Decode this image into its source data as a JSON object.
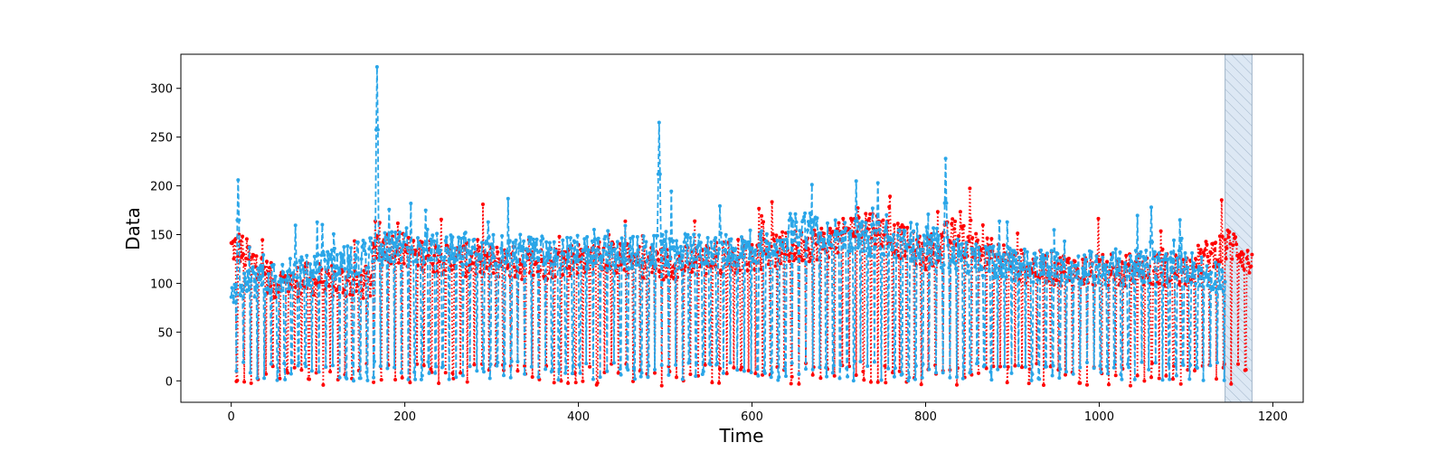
{
  "chart_data": {
    "type": "line",
    "title": "",
    "xlabel": "Time",
    "ylabel": "Data",
    "xlim": [
      -58,
      1235
    ],
    "ylim": [
      -22,
      335
    ],
    "xticks": [
      0,
      200,
      400,
      600,
      800,
      1000,
      1200
    ],
    "yticks": [
      0,
      50,
      100,
      150,
      200,
      250,
      300
    ],
    "grid": false,
    "legend": "none",
    "highlight_region": {
      "x_start": 1145,
      "x_end": 1176,
      "fill": "#dde8f4",
      "hatch": "diagonal",
      "edge": "#9fb3c8"
    },
    "series": [
      {
        "role": "observed",
        "color": "#ff0000",
        "style": "dotted",
        "marker": "dot",
        "x_start": 0,
        "x_end": 1176,
        "sampled_points": [
          [
            0,
            136
          ],
          [
            8,
            138
          ],
          [
            50,
            100
          ],
          [
            100,
            105
          ],
          [
            160,
            100
          ],
          [
            170,
            140
          ],
          [
            250,
            125
          ],
          [
            350,
            120
          ],
          [
            420,
            128
          ],
          [
            500,
            120
          ],
          [
            600,
            130
          ],
          [
            700,
            145
          ],
          [
            725,
            165
          ],
          [
            800,
            130
          ],
          [
            830,
            150
          ],
          [
            900,
            118
          ],
          [
            1000,
            112
          ],
          [
            1100,
            115
          ],
          [
            1150,
            140
          ],
          [
            1160,
            138
          ],
          [
            1176,
            115
          ]
        ],
        "low_values": [
          -5,
          18
        ]
      },
      {
        "role": "predicted",
        "color": "#2aa6e8",
        "style": "dashed",
        "marker": "dot",
        "x_start": 0,
        "x_end": 1145,
        "sampled_points": [
          [
            0,
            95
          ],
          [
            8,
            206
          ],
          [
            100,
            115
          ],
          [
            168,
            322
          ],
          [
            200,
            140
          ],
          [
            300,
            135
          ],
          [
            400,
            130
          ],
          [
            493,
            265
          ],
          [
            600,
            135
          ],
          [
            660,
            160
          ],
          [
            700,
            150
          ],
          [
            720,
            205
          ],
          [
            745,
            203
          ],
          [
            823,
            228
          ],
          [
            900,
            120
          ],
          [
            1000,
            115
          ],
          [
            1060,
            178
          ],
          [
            1100,
            118
          ],
          [
            1145,
            105
          ]
        ],
        "peaks": [
          [
            8,
            206
          ],
          [
            168,
            322
          ],
          [
            493,
            265
          ],
          [
            720,
            205
          ],
          [
            745,
            203
          ],
          [
            823,
            228
          ],
          [
            1060,
            178
          ]
        ],
        "low_values": [
          0,
          20
        ]
      }
    ]
  }
}
